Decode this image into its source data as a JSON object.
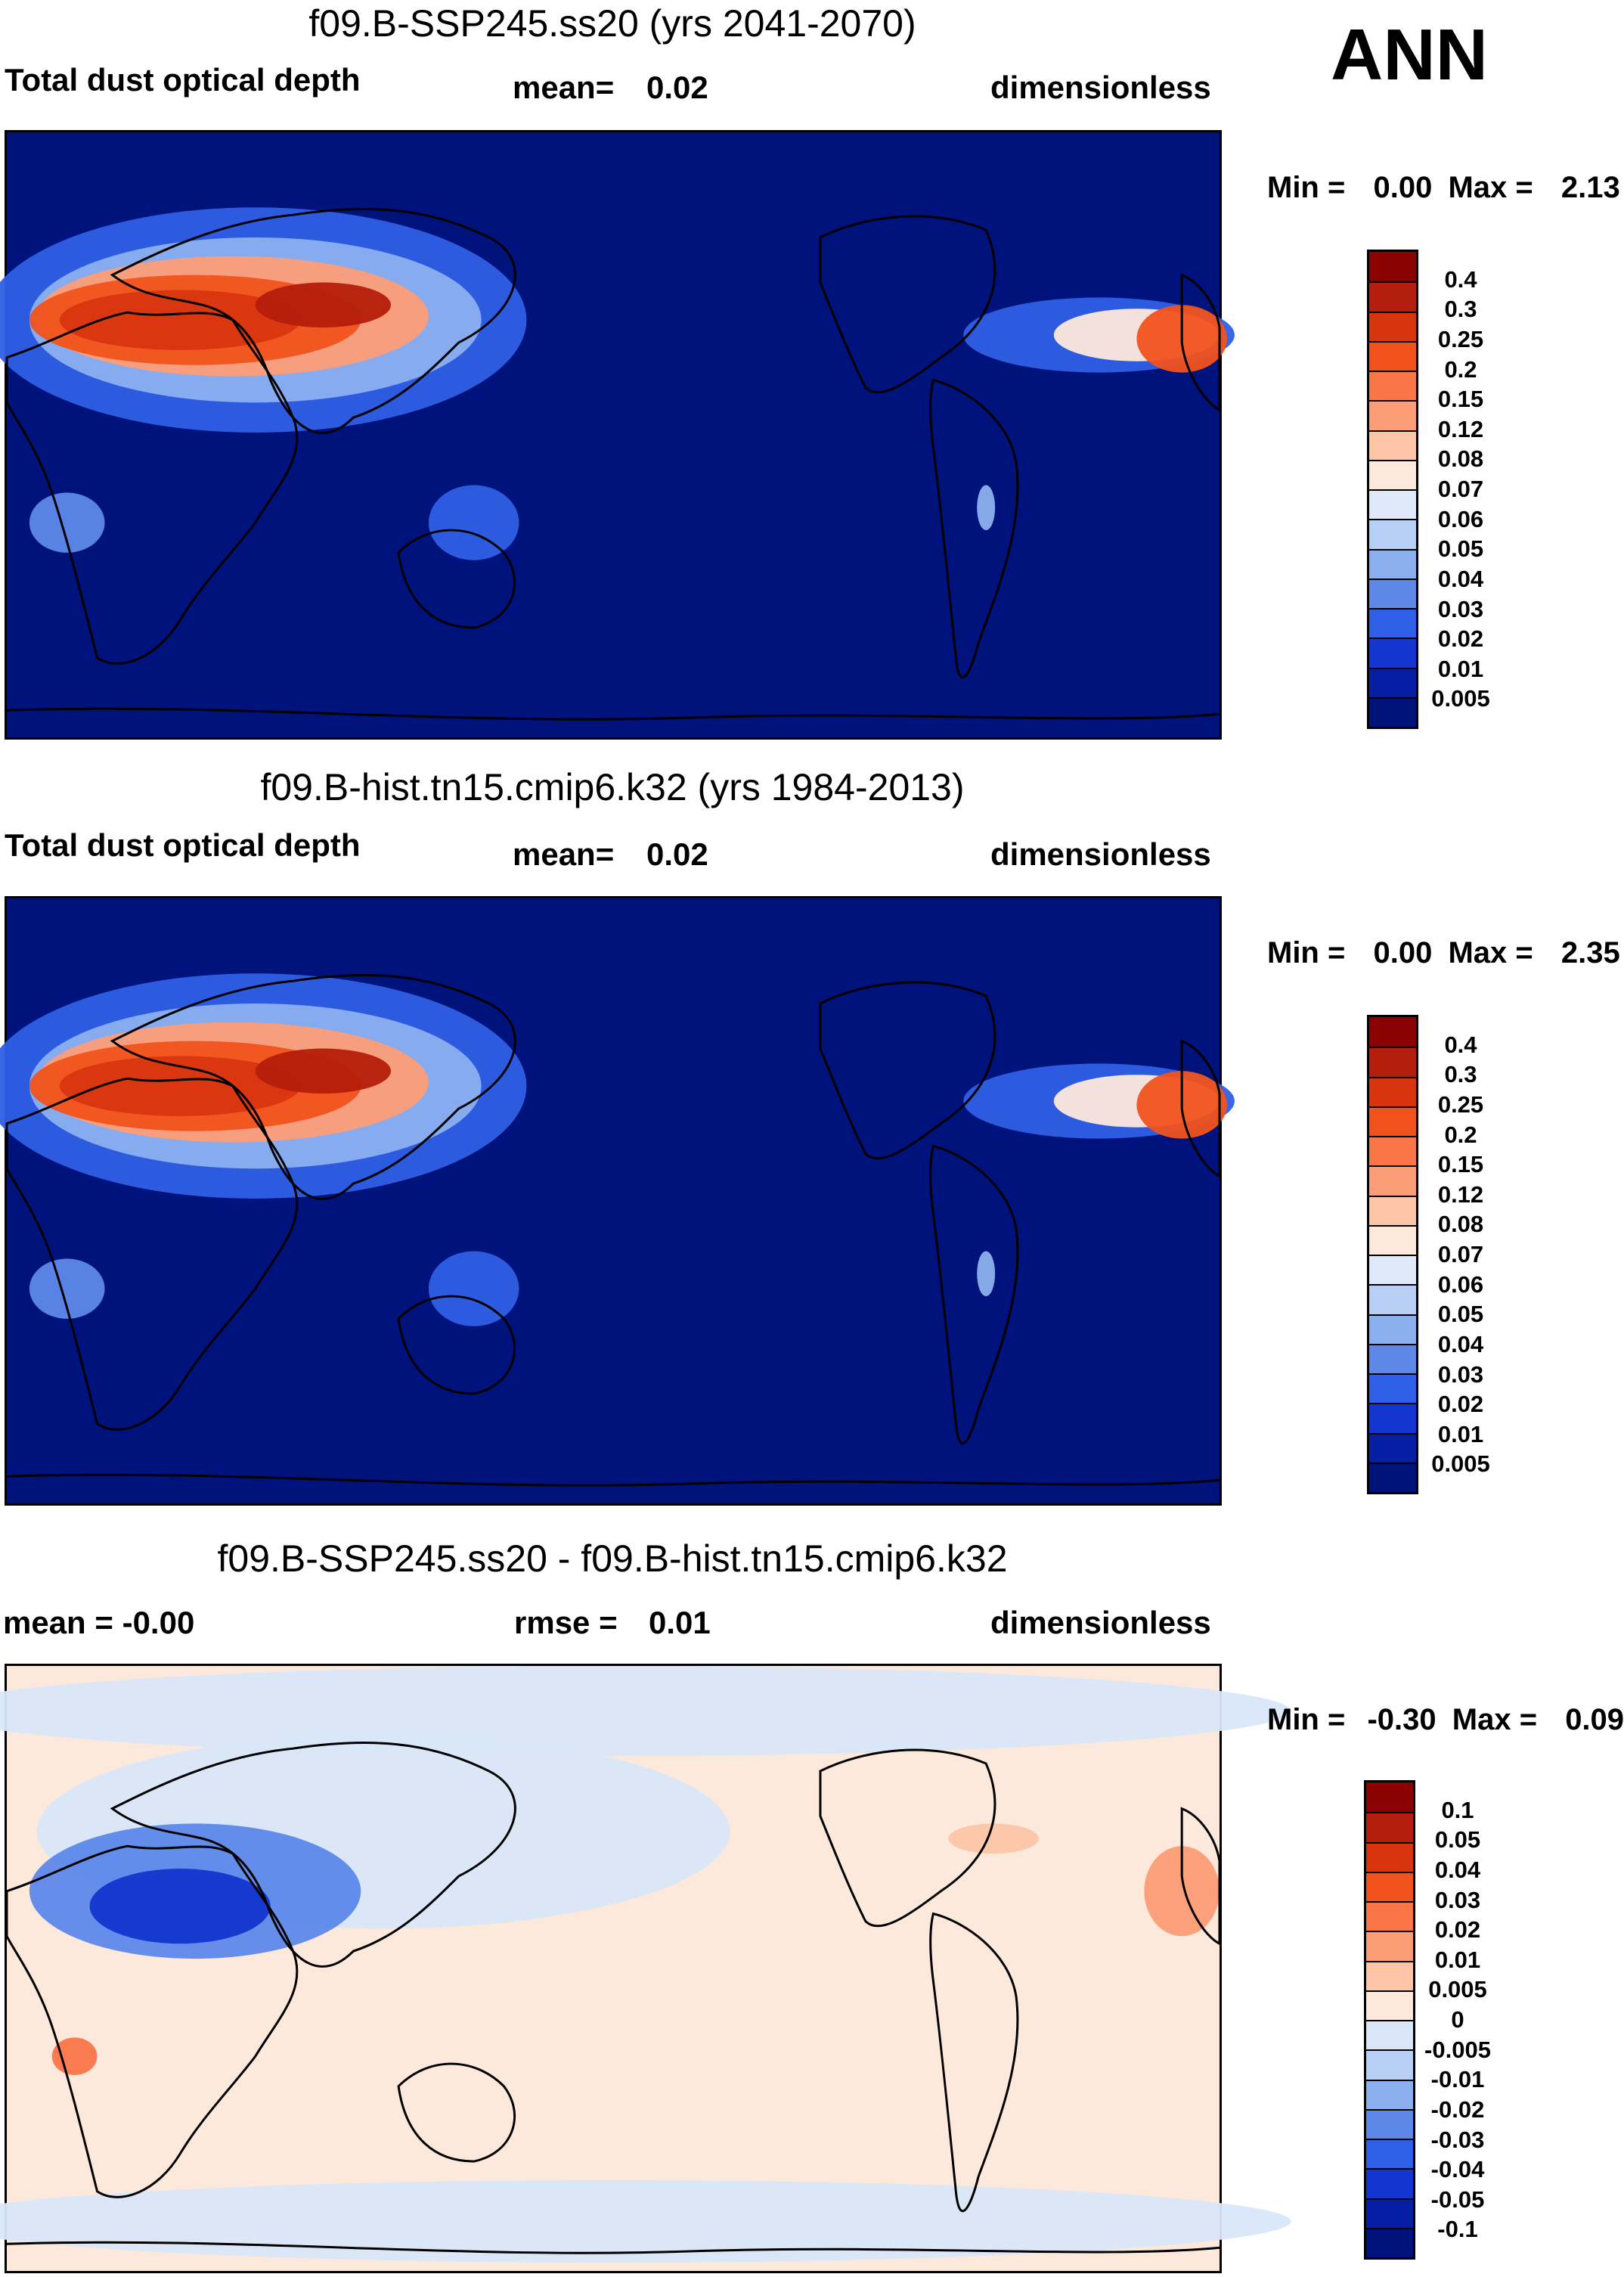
{
  "ann_label": "ANN",
  "panels": [
    {
      "title": "f09.B-SSP245.ss20 (yrs 2041-2070)",
      "left": "Total dust optical depth",
      "middle_label": "mean=",
      "middle_value": "0.02",
      "right": "dimensionless",
      "min_label": "Min =",
      "min_value": "0.00",
      "max_label": "Max =",
      "max_value": "2.13",
      "colorbar_labels": [
        "0.4",
        "0.3",
        "0.25",
        "0.2",
        "0.15",
        "0.12",
        "0.08",
        "0.07",
        "0.06",
        "0.05",
        "0.04",
        "0.03",
        "0.02",
        "0.01",
        "0.005"
      ],
      "colorbar_colors": [
        "#8b0000",
        "#b51d0c",
        "#d8350f",
        "#f1521c",
        "#fa7548",
        "#fc9d77",
        "#fdc5a6",
        "#fde9db",
        "#dfe9f9",
        "#b7cff5",
        "#8cb0ef",
        "#5d88ea",
        "#2e5fe6",
        "#1236cf",
        "#061ea3",
        "#00137c"
      ],
      "map_kind": "abs"
    },
    {
      "title": "f09.B-hist.tn15.cmip6.k32 (yrs 1984-2013)",
      "left": "Total dust optical depth",
      "middle_label": "mean=",
      "middle_value": "0.02",
      "right": "dimensionless",
      "min_label": "Min =",
      "min_value": "0.00",
      "max_label": "Max =",
      "max_value": "2.35",
      "colorbar_labels": [
        "0.4",
        "0.3",
        "0.25",
        "0.2",
        "0.15",
        "0.12",
        "0.08",
        "0.07",
        "0.06",
        "0.05",
        "0.04",
        "0.03",
        "0.02",
        "0.01",
        "0.005"
      ],
      "colorbar_colors": [
        "#8b0000",
        "#b51d0c",
        "#d8350f",
        "#f1521c",
        "#fa7548",
        "#fc9d77",
        "#fdc5a6",
        "#fde9db",
        "#dfe9f9",
        "#b7cff5",
        "#8cb0ef",
        "#5d88ea",
        "#2e5fe6",
        "#1236cf",
        "#061ea3",
        "#00137c"
      ],
      "map_kind": "abs"
    },
    {
      "title": "f09.B-SSP245.ss20 - f09.B-hist.tn15.cmip6.k32",
      "left": "mean = -0.00",
      "middle_label": "rmse =",
      "middle_value": "0.01",
      "right": "dimensionless",
      "min_label": "Min =",
      "min_value": "-0.30",
      "max_label": "Max =",
      "max_value": "0.09",
      "colorbar_labels": [
        "0.1",
        "0.05",
        "0.04",
        "0.03",
        "0.02",
        "0.01",
        "0.005",
        "0",
        "-0.005",
        "-0.01",
        "-0.02",
        "-0.03",
        "-0.04",
        "-0.05",
        "-0.1"
      ],
      "colorbar_colors": [
        "#8b0000",
        "#b51d0c",
        "#d8350f",
        "#f1521c",
        "#fa7548",
        "#fc9d77",
        "#fdc5a6",
        "#fde9db",
        "#d9e7f9",
        "#b7cff5",
        "#8cb0ef",
        "#5d88ea",
        "#2e5fe6",
        "#1236cf",
        "#061ea3",
        "#00137c"
      ],
      "map_kind": "diff"
    }
  ]
}
